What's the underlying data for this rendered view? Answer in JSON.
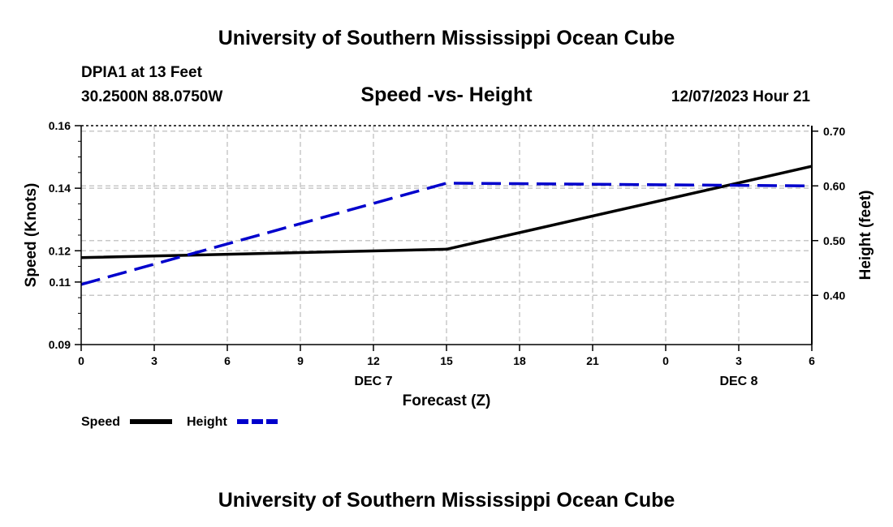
{
  "header": {
    "title": "University of Southern Mississippi Ocean Cube",
    "station": "DPIA1 at 13 Feet",
    "location": "30.2500N  88.0750W",
    "datetime": "12/07/2023 Hour 21",
    "footer_title": "University of Southern Mississippi Ocean Cube"
  },
  "chart_data": {
    "type": "line",
    "title": "Speed -vs- Height",
    "xlabel": "Forecast (Z)",
    "ylabel": "Speed (Knots)",
    "y2label": "Height (feet)",
    "x_tick_labels": [
      "0",
      "3",
      "6",
      "9",
      "12",
      "15",
      "18",
      "21",
      "0",
      "3",
      "6"
    ],
    "x_date_labels": [
      {
        "label": "DEC 7",
        "tick_index": 4
      },
      {
        "label": "DEC 8",
        "tick_index": 9
      }
    ],
    "xlim": [
      0,
      30
    ],
    "ylim": [
      0.09,
      0.16
    ],
    "y_tick_labels": [
      "0.09",
      "0.11",
      "0.12",
      "0.14",
      "0.16"
    ],
    "y_tick_values": [
      0.09,
      0.11,
      0.12,
      0.14,
      0.16
    ],
    "y2lim": [
      0.31,
      0.71
    ],
    "y2_tick_labels": [
      "0.40",
      "0.50",
      "0.60",
      "0.70"
    ],
    "y2_tick_values": [
      0.4,
      0.5,
      0.6,
      0.7
    ],
    "grid": true,
    "series": [
      {
        "name": "Speed",
        "axis": "left",
        "color": "#000000",
        "style": "solid",
        "x": [
          0,
          15,
          30
        ],
        "values": [
          0.1178,
          0.1205,
          0.147
        ]
      },
      {
        "name": "Height",
        "axis": "right",
        "color": "#0000cc",
        "style": "dashed",
        "x": [
          0,
          15,
          30
        ],
        "values": [
          0.42,
          0.605,
          0.6
        ]
      }
    ],
    "legend": [
      {
        "label": "Speed",
        "color": "#000000",
        "style": "solid"
      },
      {
        "label": "Height",
        "color": "#0000cc",
        "style": "dashed"
      }
    ]
  }
}
